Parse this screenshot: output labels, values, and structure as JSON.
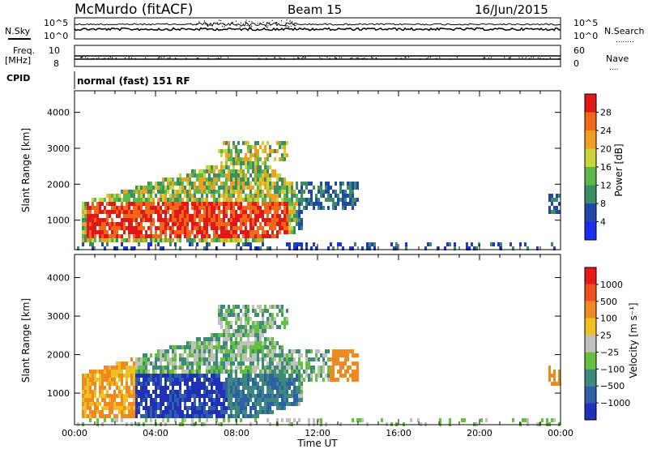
{
  "header": {
    "station": "McMurdo (fitACF)",
    "beam": "Beam 15",
    "date": "16/Jun/2015"
  },
  "side_labels": {
    "nsky": "N.Sky",
    "freq": "Freq.",
    "mhz": "[MHz]",
    "cpid": "CPID",
    "nsearch": "N.Search",
    "nave": "Nave",
    "nsearch_dots": "........",
    "nave_dots": "....",
    "noise_axis_top": "10^5",
    "noise_axis_bottom": "10^0",
    "noise_right_top": "10^5",
    "noise_right_bottom": "10^0",
    "freq_left_top": "10",
    "freq_left_bottom": "8",
    "nave_right_top": "60",
    "nave_right_bottom": "0"
  },
  "cpid_text": "normal (fast) 151 RF",
  "chart_data": [
    {
      "type": "heatmap",
      "name": "power",
      "ylabel": "Slant Range [km]",
      "xlabel": "",
      "y_ticks": [
        "1000",
        "2000",
        "3000",
        "4000"
      ],
      "y_tick_values": [
        1000,
        2000,
        3000,
        4000
      ],
      "ylim": [
        180,
        4600
      ],
      "colorbar_label": "Power [dB]",
      "colorbar_ticks": [
        "4",
        "8",
        "12",
        "16",
        "20",
        "24",
        "28"
      ],
      "colorbar_colors": [
        "#1a2ef0",
        "#2048a8",
        "#3c8c66",
        "#5cb84a",
        "#c8d43a",
        "#f0a020",
        "#f06818",
        "#e01818"
      ]
    },
    {
      "type": "heatmap",
      "name": "velocity",
      "ylabel": "Slant Range [km]",
      "xlabel": "Time UT",
      "x_ticks": [
        "00:00",
        "04:00",
        "08:00",
        "12:00",
        "16:00",
        "20:00",
        "00:00"
      ],
      "x_tick_values": [
        0,
        4,
        8,
        12,
        16,
        20,
        24
      ],
      "xlim": [
        0,
        24
      ],
      "y_ticks": [
        "1000",
        "2000",
        "3000",
        "4000"
      ],
      "y_tick_values": [
        1000,
        2000,
        3000,
        4000
      ],
      "ylim": [
        180,
        4600
      ],
      "colorbar_label": "Velocity [m s⁻¹]",
      "colorbar_ticks": [
        "1000",
        "500",
        "100",
        "25",
        "−25",
        "−100",
        "−500",
        "−1000"
      ],
      "colorbar_colors": [
        "#2030b8",
        "#2e60a8",
        "#3e8a78",
        "#66c040",
        "#c0c0c0",
        "#f0c020",
        "#f08a20",
        "#f05020",
        "#e81818"
      ]
    }
  ]
}
